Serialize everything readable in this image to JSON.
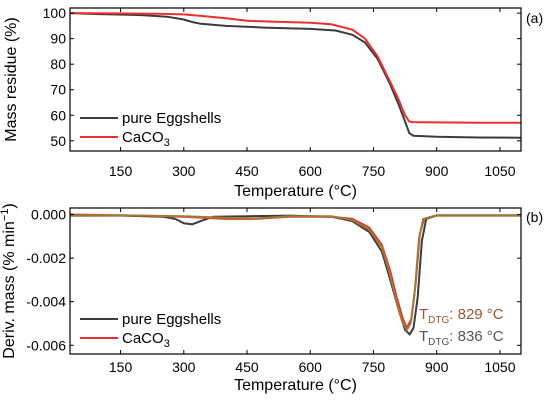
{
  "chart_data": [
    {
      "type": "line",
      "panel_label": "(a)",
      "xlabel": "Temperature (°C)",
      "ylabel": "Mass residue (%)",
      "xlim": [
        30,
        1100
      ],
      "ylim": [
        46,
        102
      ],
      "xticks": [
        150,
        300,
        450,
        600,
        750,
        900,
        1050
      ],
      "yticks": [
        50,
        60,
        70,
        80,
        90,
        100
      ],
      "legend_position": "bottom-left",
      "series": [
        {
          "name": "pure Eggshells",
          "color": "#3c3c3c",
          "points": [
            [
              30,
              100
            ],
            [
              100,
              99.6
            ],
            [
              200,
              99.2
            ],
            [
              260,
              98.6
            ],
            [
              300,
              97.5
            ],
            [
              320,
              96.5
            ],
            [
              340,
              95.8
            ],
            [
              400,
              95.0
            ],
            [
              500,
              94.3
            ],
            [
              600,
              93.8
            ],
            [
              660,
              93.2
            ],
            [
              700,
              91.5
            ],
            [
              730,
              88.5
            ],
            [
              760,
              82.0
            ],
            [
              790,
              72.0
            ],
            [
              810,
              64.0
            ],
            [
              825,
              57.5
            ],
            [
              835,
              53.0
            ],
            [
              845,
              52.0
            ],
            [
              900,
              51.6
            ],
            [
              1000,
              51.3
            ],
            [
              1100,
              51.2
            ]
          ]
        },
        {
          "name": "CaCO3",
          "color": "#e8312f",
          "points": [
            [
              30,
              100
            ],
            [
              150,
              99.9
            ],
            [
              250,
              99.7
            ],
            [
              300,
              99.5
            ],
            [
              350,
              98.8
            ],
            [
              400,
              98.0
            ],
            [
              450,
              97.0
            ],
            [
              500,
              96.7
            ],
            [
              600,
              96.2
            ],
            [
              650,
              95.6
            ],
            [
              700,
              93.5
            ],
            [
              730,
              90.0
            ],
            [
              760,
              83.0
            ],
            [
              790,
              73.0
            ],
            [
              810,
              66.0
            ],
            [
              825,
              60.0
            ],
            [
              835,
              57.5
            ],
            [
              845,
              57.3
            ],
            [
              900,
              57.2
            ],
            [
              1000,
              57.1
            ],
            [
              1100,
              57.1
            ]
          ]
        }
      ]
    },
    {
      "type": "line",
      "panel_label": "(b)",
      "xlabel": "Temperature (°C)",
      "ylabel": "Deriv. mass (% min",
      "ylabel_sup": "−1",
      "ylabel_end": ")",
      "xlim": [
        30,
        1100
      ],
      "ylim": [
        -0.0064,
        0.0003
      ],
      "xticks": [
        150,
        300,
        450,
        600,
        750,
        900,
        1050
      ],
      "yticks": [
        "0.000",
        "-0.002",
        "-0.004",
        "-0.006"
      ],
      "legend_position": "bottom-left",
      "annotations": [
        {
          "text": "T",
          "sub": "DTG",
          "value": ": 829 °C",
          "color": "#a0522d"
        },
        {
          "text": "T",
          "sub": "DTG",
          "value": ": 836 °C",
          "color": "#555555"
        }
      ],
      "series": [
        {
          "name": "pure Eggshells",
          "color": "#3c3c3c",
          "points": [
            [
              30,
              -5e-05
            ],
            [
              150,
              -5e-05
            ],
            [
              250,
              -0.0001
            ],
            [
              280,
              -0.0002
            ],
            [
              300,
              -0.0004
            ],
            [
              320,
              -0.00045
            ],
            [
              340,
              -0.0003
            ],
            [
              370,
              -0.0001
            ],
            [
              450,
              -8e-05
            ],
            [
              550,
              -5e-05
            ],
            [
              650,
              -0.0001
            ],
            [
              700,
              -0.0003
            ],
            [
              740,
              -0.0008
            ],
            [
              770,
              -0.0017
            ],
            [
              790,
              -0.003
            ],
            [
              810,
              -0.0044
            ],
            [
              825,
              -0.0053
            ],
            [
              836,
              -0.0055
            ],
            [
              845,
              -0.0052
            ],
            [
              855,
              -0.0038
            ],
            [
              865,
              -0.0012
            ],
            [
              875,
              -0.0002
            ],
            [
              900,
              -5e-05
            ],
            [
              1100,
              -5e-05
            ]
          ]
        },
        {
          "name": "CaCO3",
          "color": "#e8312f",
          "points": [
            [
              30,
              0
            ],
            [
              200,
              -5e-05
            ],
            [
              300,
              -0.0001
            ],
            [
              400,
              -0.0002
            ],
            [
              470,
              -0.0002
            ],
            [
              550,
              -0.0001
            ],
            [
              650,
              -0.0001
            ],
            [
              700,
              -0.0002
            ],
            [
              740,
              -0.0006
            ],
            [
              770,
              -0.0014
            ],
            [
              790,
              -0.0026
            ],
            [
              805,
              -0.0038
            ],
            [
              820,
              -0.0048
            ],
            [
              829,
              -0.0052
            ],
            [
              840,
              -0.0048
            ],
            [
              850,
              -0.0032
            ],
            [
              860,
              -0.0009
            ],
            [
              870,
              -0.0002
            ],
            [
              900,
              -3e-05
            ],
            [
              1100,
              -3e-05
            ]
          ]
        },
        {
          "name": "",
          "color": "#a07a35",
          "points": [
            [
              30,
              -3e-05
            ],
            [
              200,
              -5e-05
            ],
            [
              300,
              -8e-05
            ],
            [
              400,
              -0.00015
            ],
            [
              470,
              -0.00018
            ],
            [
              550,
              -8e-05
            ],
            [
              650,
              -8e-05
            ],
            [
              700,
              -0.00025
            ],
            [
              740,
              -0.0007
            ],
            [
              770,
              -0.0015
            ],
            [
              790,
              -0.0028
            ],
            [
              805,
              -0.004
            ],
            [
              818,
              -0.0049
            ],
            [
              829,
              -0.0053
            ],
            [
              838,
              -0.005
            ],
            [
              848,
              -0.0035
            ],
            [
              858,
              -0.0011
            ],
            [
              868,
              -0.0002
            ],
            [
              900,
              -4e-05
            ],
            [
              1100,
              -4e-05
            ]
          ]
        }
      ]
    }
  ],
  "legend": {
    "eggshells": "pure Eggshells",
    "caco3_main": "CaCO",
    "caco3_sub": "3"
  }
}
